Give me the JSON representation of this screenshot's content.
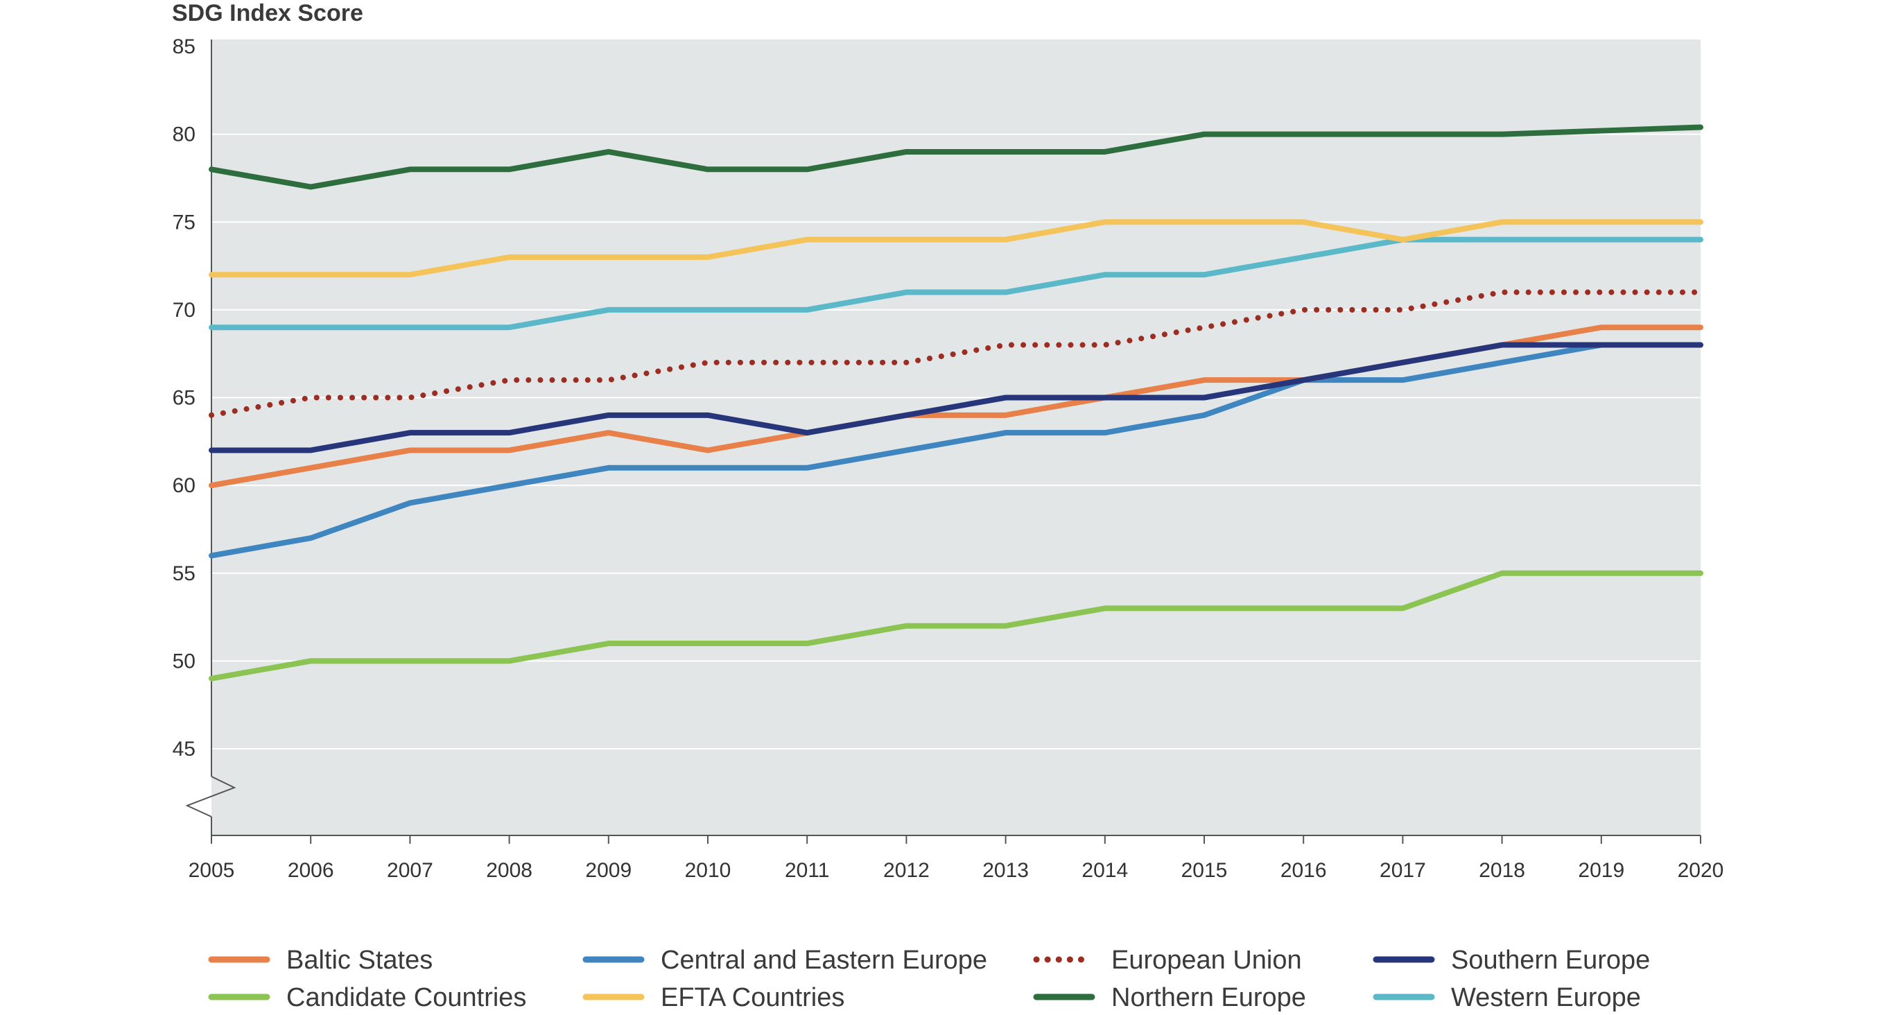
{
  "chart_data": {
    "type": "line",
    "title": "SDG Index Score",
    "xlabel": "",
    "ylabel": "",
    "ylim": [
      40,
      85
    ],
    "yticks": [
      45,
      50,
      55,
      60,
      65,
      70,
      75,
      80,
      85
    ],
    "axis_break": true,
    "grid": true,
    "legend_position": "bottom",
    "x": [
      2005,
      2006,
      2007,
      2008,
      2009,
      2010,
      2011,
      2012,
      2013,
      2014,
      2015,
      2016,
      2017,
      2018,
      2019,
      2020
    ],
    "series": [
      {
        "name": "Baltic States",
        "color": "#e8804a",
        "dash": "solid",
        "values": [
          60,
          61,
          62,
          62,
          63,
          62,
          63,
          64,
          64,
          65,
          66,
          66,
          67,
          68,
          69,
          69
        ]
      },
      {
        "name": "Central and Eastern Europe",
        "color": "#3f86c1",
        "dash": "solid",
        "values": [
          56,
          57,
          59,
          60,
          61,
          61,
          61,
          62,
          63,
          63,
          64,
          66,
          66,
          67,
          68,
          68
        ]
      },
      {
        "name": "European Union",
        "color": "#9b2d22",
        "dash": "dotted",
        "values": [
          64,
          65,
          65,
          66,
          66,
          67,
          67,
          67,
          68,
          68,
          69,
          70,
          70,
          71,
          71,
          71
        ]
      },
      {
        "name": "Southern Europe",
        "color": "#27357a",
        "dash": "solid",
        "values": [
          62,
          62,
          63,
          63,
          64,
          64,
          63,
          64,
          65,
          65,
          65,
          66,
          67,
          68,
          68,
          68
        ]
      },
      {
        "name": "Candidate Countries",
        "color": "#8bc452",
        "dash": "solid",
        "values": [
          49,
          50,
          50,
          50,
          51,
          51,
          51,
          52,
          52,
          53,
          53,
          53,
          53,
          55,
          55,
          55
        ]
      },
      {
        "name": "EFTA Countries",
        "color": "#f4c35a",
        "dash": "solid",
        "values": [
          72,
          72,
          72,
          73,
          73,
          73,
          74,
          74,
          74,
          75,
          75,
          75,
          74,
          75,
          75,
          75
        ]
      },
      {
        "name": "Northern Europe",
        "color": "#2e6e3e",
        "dash": "solid",
        "values": [
          78,
          77,
          78,
          78,
          79,
          78,
          78,
          79,
          79,
          79,
          80,
          80,
          80,
          80,
          80.2,
          80.4
        ]
      },
      {
        "name": "Western Europe",
        "color": "#5ab8c9",
        "dash": "solid",
        "values": [
          69,
          69,
          69,
          69,
          70,
          70,
          70,
          71,
          71,
          72,
          72,
          73,
          74,
          74,
          74,
          74
        ]
      }
    ]
  }
}
